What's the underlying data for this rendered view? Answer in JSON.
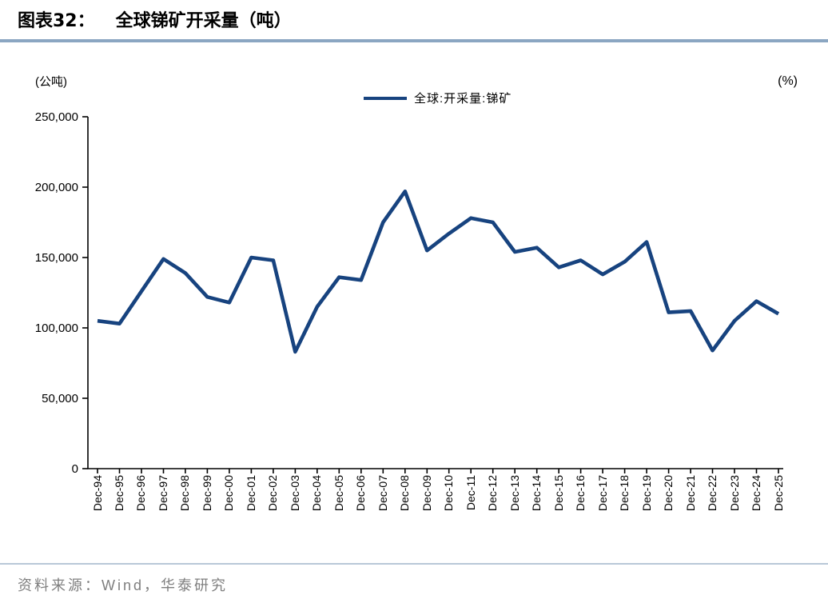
{
  "header": {
    "title_label": "图表32：",
    "title_text": "全球锑矿开采量（吨）"
  },
  "chart": {
    "left_unit": "(公吨)",
    "right_unit": "(%)",
    "legend_label": "全球:开采量:锑矿"
  },
  "chart_data": {
    "type": "line",
    "title": "全球锑矿开采量（吨）",
    "x": [
      "Dec-94",
      "Dec-95",
      "Dec-96",
      "Dec-97",
      "Dec-98",
      "Dec-99",
      "Dec-00",
      "Dec-01",
      "Dec-02",
      "Dec-03",
      "Dec-04",
      "Dec-05",
      "Dec-06",
      "Dec-07",
      "Dec-08",
      "Dec-09",
      "Dec-10",
      "Dec-11",
      "Dec-12",
      "Dec-13",
      "Dec-14",
      "Dec-15",
      "Dec-16",
      "Dec-17",
      "Dec-18",
      "Dec-19",
      "Dec-20",
      "Dec-21",
      "Dec-22",
      "Dec-23",
      "Dec-24",
      "Dec-25"
    ],
    "series": [
      {
        "name": "全球:开采量:锑矿",
        "values": [
          105000,
          103000,
          126000,
          149000,
          139000,
          122000,
          118000,
          150000,
          148000,
          83000,
          115000,
          136000,
          134000,
          175000,
          197000,
          155000,
          167000,
          178000,
          175000,
          154000,
          157000,
          143000,
          148000,
          138000,
          147000,
          161000,
          111000,
          112000,
          84000,
          105000,
          119000,
          110000
        ]
      }
    ],
    "ylabel_left": "(公吨)",
    "ylabel_right": "(%)",
    "ylim": [
      0,
      250000
    ],
    "yticks": [
      0,
      50000,
      100000,
      150000,
      200000,
      250000
    ],
    "grid": false,
    "legend_position": "top-center",
    "line_color": "#17437F"
  },
  "colors": {
    "line": "#17437F",
    "title_rule": "#8BA6C2",
    "footer_rule": "#B9C8D8",
    "source_text": "#7F7F7F",
    "axis": "#000000"
  },
  "footer": {
    "source": "资料来源：Wind，华泰研究"
  }
}
